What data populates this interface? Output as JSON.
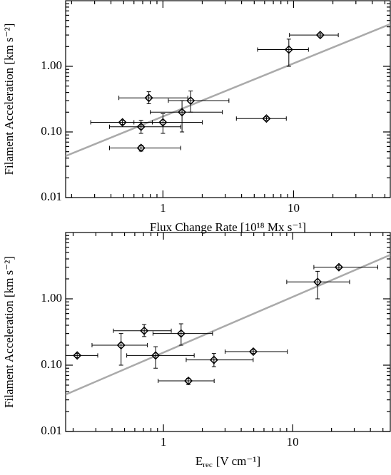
{
  "chart_data": [
    {
      "type": "scatter",
      "xlabel": "Flux Change Rate [10¹⁸ Mx s⁻¹]",
      "ylabel": "Filament Acceleration [km s⁻²]",
      "x_log": true,
      "y_log": true,
      "xlim": [
        0.18,
        55
      ],
      "ylim": [
        0.01,
        10
      ],
      "xticks": [
        1,
        10
      ],
      "yticks": [
        0.01,
        {
          "value": 0.1,
          "label": "0.10"
        },
        {
          "value": 1,
          "label": "1.00"
        }
      ],
      "color": "#000000",
      "fit_color": "#aaaaaa",
      "x": [
        0.49,
        0.68,
        0.68,
        0.78,
        1.0,
        1.4,
        1.63,
        6.2,
        9.2,
        16
      ],
      "y": [
        0.14,
        0.12,
        0.057,
        0.33,
        0.14,
        0.2,
        0.3,
        0.16,
        1.8,
        3.0
      ],
      "x_low": [
        0.28,
        0.39,
        0.39,
        0.46,
        0.6,
        0.8,
        1.1,
        3.65,
        5.3,
        9.3
      ],
      "x_high": [
        0.83,
        1.37,
        1.37,
        1.55,
        2.0,
        2.85,
        3.2,
        8.8,
        13,
        22
      ],
      "y_low": [
        0.13,
        0.095,
        0.051,
        0.27,
        0.095,
        0.1,
        0.2,
        0.15,
        1.0,
        2.8
      ],
      "y_high": [
        0.15,
        0.15,
        0.063,
        0.41,
        0.19,
        0.3,
        0.42,
        0.17,
        2.6,
        3.2
      ],
      "fit_x": [
        0.18,
        55
      ],
      "fit_y": [
        0.043,
        4.4
      ]
    },
    {
      "type": "scatter",
      "xlabel": [
        "E",
        "rec",
        "[V cm⁻¹]"
      ],
      "ylabel": "Filament Acceleration [km s⁻²]",
      "x_log": true,
      "y_log": true,
      "xlim": [
        0.175,
        57
      ],
      "ylim": [
        0.01,
        10
      ],
      "xticks": [
        1,
        10
      ],
      "yticks": [
        0.01,
        {
          "value": 0.1,
          "label": "0.10"
        },
        {
          "value": 1,
          "label": "1.00"
        }
      ],
      "color": "#000000",
      "fit_color": "#aaaaaa",
      "x": [
        0.215,
        0.47,
        0.71,
        0.87,
        1.37,
        2.46,
        1.56,
        4.96,
        15.6,
        22.8
      ],
      "y": [
        0.14,
        0.2,
        0.33,
        0.14,
        0.3,
        0.12,
        0.058,
        0.16,
        1.8,
        3.0
      ],
      "x_low": [
        0.175,
        0.28,
        0.41,
        0.52,
        0.83,
        1.5,
        0.91,
        3.0,
        9.0,
        14.6
      ],
      "x_high": [
        0.31,
        0.75,
        1.15,
        1.73,
        2.4,
        4.95,
        2.47,
        9.1,
        27.6,
        45.6
      ],
      "y_low": [
        0.13,
        0.1,
        0.27,
        0.09,
        0.2,
        0.095,
        0.051,
        0.15,
        1.0,
        2.8
      ],
      "y_high": [
        0.15,
        0.3,
        0.41,
        0.19,
        0.42,
        0.15,
        0.063,
        0.17,
        2.6,
        3.2
      ],
      "fit_x": [
        0.175,
        57
      ],
      "fit_y": [
        0.036,
        4.6
      ]
    }
  ]
}
